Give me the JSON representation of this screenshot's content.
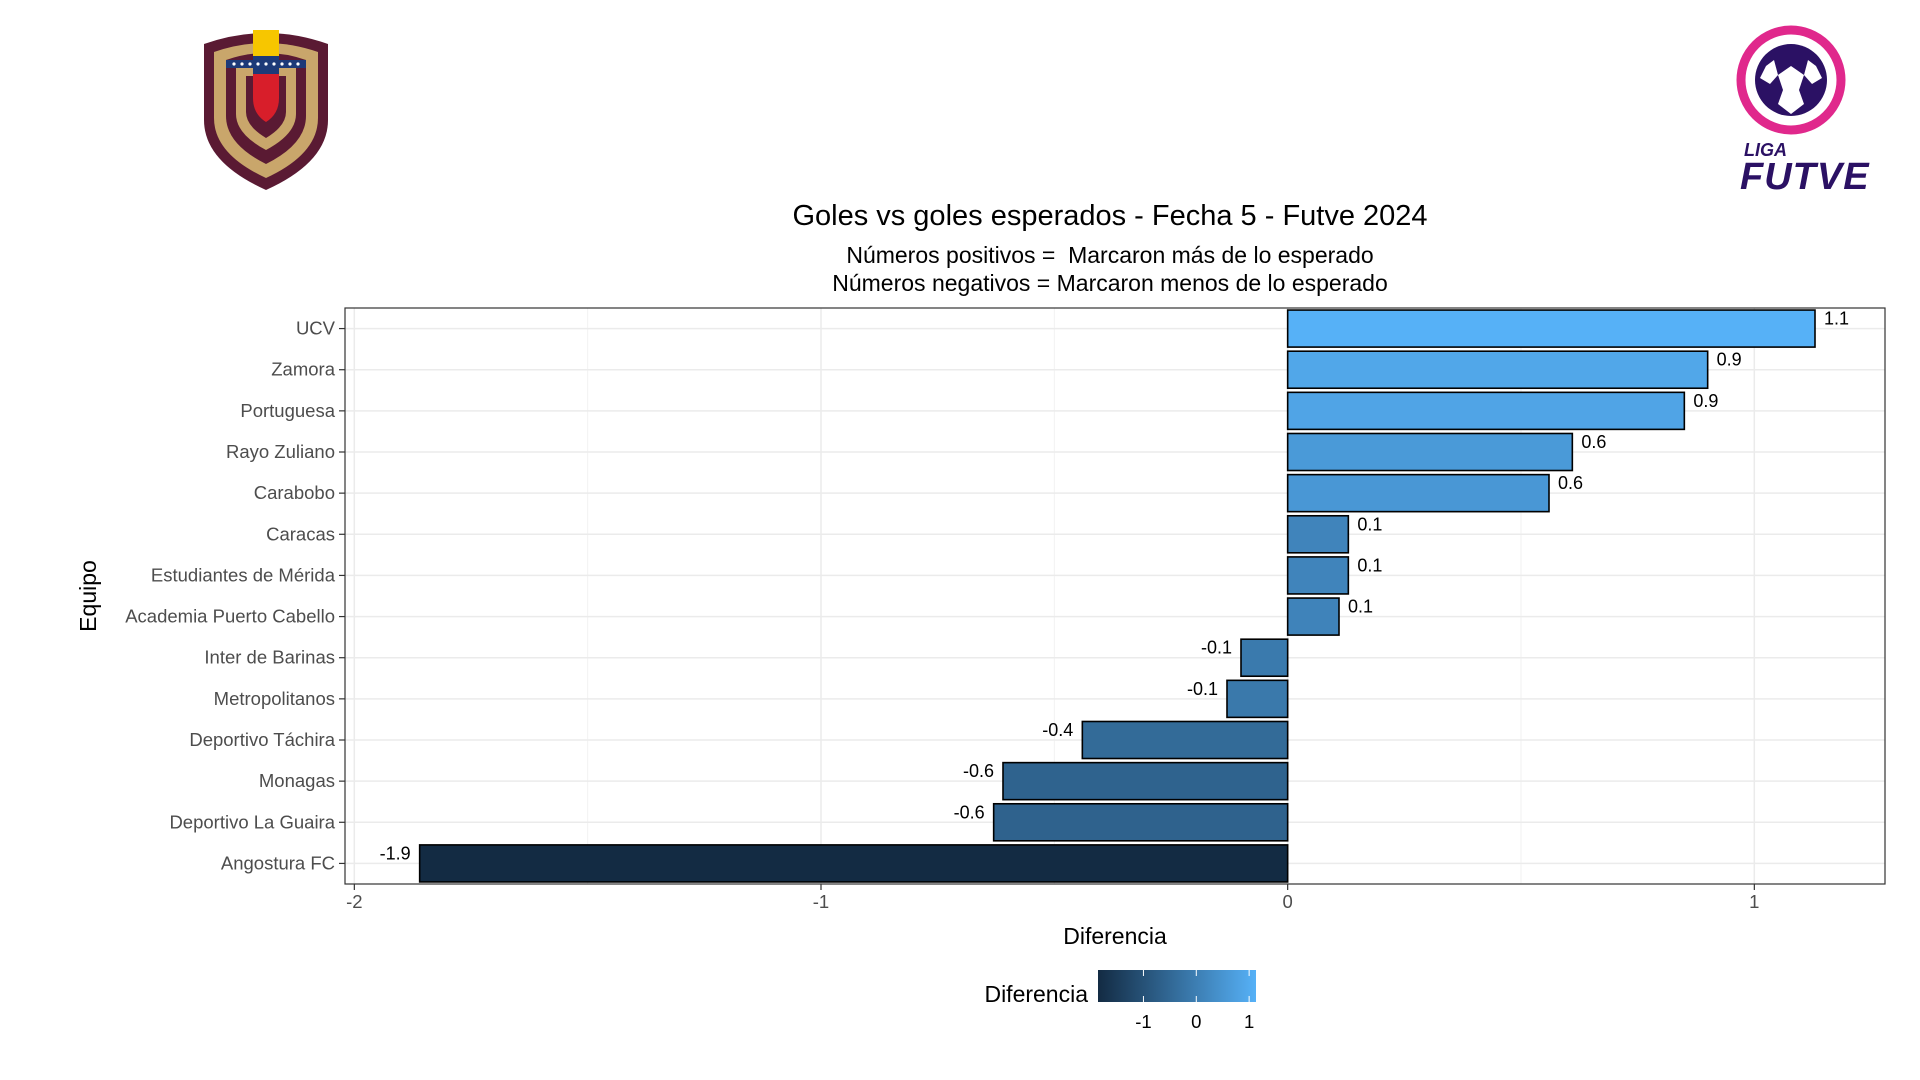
{
  "header": {
    "title": "Goles vs goles esperados - Fecha 5 - Futve 2024",
    "subtitle_line1": "Números positivos =  Marcaron más de lo esperado",
    "subtitle_line2": "Números negativos = Marcaron menos de lo esperado"
  },
  "logos": {
    "left": {
      "icon": "venezuela-federation-crest-icon"
    },
    "right": {
      "icon": "liga-futve-logo-icon",
      "line1": "LIGA",
      "line2": "FUTVE"
    }
  },
  "chart_data": {
    "type": "bar",
    "orientation": "horizontal",
    "xlabel": "Diferencia",
    "ylabel": "Equipo",
    "xlim": [
      -2.02,
      1.28
    ],
    "xticks": [
      -2,
      -1,
      0,
      1
    ],
    "xtick_labels": [
      "-2",
      "-1",
      "0",
      "1"
    ],
    "grid": true,
    "categories": [
      "UCV",
      "Zamora",
      "Portuguesa",
      "Rayo Zuliano",
      "Carabobo",
      "Caracas",
      "Estudiantes de Mérida",
      "Academia Puerto Cabello",
      "Inter de Barinas",
      "Metropolitanos",
      "Deportivo Táchira",
      "Monagas",
      "Deportivo La Guaira",
      "Angostura FC"
    ],
    "values": [
      1.13,
      0.9,
      0.85,
      0.61,
      0.56,
      0.13,
      0.13,
      0.11,
      -0.1,
      -0.13,
      -0.44,
      -0.61,
      -0.63,
      -1.86
    ],
    "labels": [
      "1.1",
      "0.9",
      "0.9",
      "0.6",
      "0.6",
      "0.1",
      "0.1",
      "0.1",
      "-0.1",
      "-0.1",
      "-0.4",
      "-0.6",
      "-0.6",
      "-1.9"
    ],
    "color_scale": {
      "low": "#132b43",
      "high": "#56b1f7",
      "limits": [
        -1.86,
        1.13
      ]
    },
    "legend": {
      "title": "Diferencia",
      "position": "bottom",
      "ticks": [
        -1,
        0,
        1
      ],
      "tick_labels": [
        "-1",
        "0",
        "1"
      ]
    }
  }
}
